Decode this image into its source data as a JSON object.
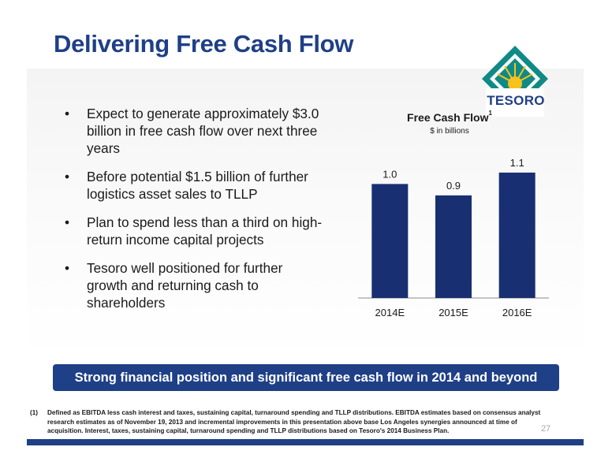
{
  "slide": {
    "title": "Delivering Free Cash Flow",
    "logo_text": "TESORO",
    "page_number": "27"
  },
  "bullets": [
    "Expect to generate approximately $3.0 billion in free cash flow over next three years",
    "Before potential $1.5 billion of further logistics asset sales to TLLP",
    "Plan to spend less than a third on high-return income capital projects",
    "Tesoro well positioned for further growth and returning cash to shareholders"
  ],
  "chart_data": {
    "type": "bar",
    "title": "Free Cash Flow",
    "title_superscript": "1",
    "subtitle": "$ in billions",
    "categories": [
      "2014E",
      "2015E",
      "2016E"
    ],
    "values": [
      1.0,
      0.9,
      1.1
    ],
    "value_labels": [
      "1.0",
      "0.9",
      "1.1"
    ],
    "ylim": [
      0,
      1.3
    ],
    "grid": false,
    "bar_color": "#182f72"
  },
  "banner_text": "Strong financial position and significant free cash flow in 2014 and beyond",
  "footnote": {
    "marker": "(1)",
    "text": "Defined as EBITDA less cash interest and taxes, sustaining capital, turnaround spending and TLLP distributions. EBITDA estimates based on consensus analyst research estimates as of November 19, 2013 and incremental improvements in this presentation above base Los Angeles synergies announced at time of acquisition. Interest, taxes, sustaining capital, turnaround spending and TLLP distributions based on Tesoro's 2014 Business Plan."
  },
  "colors": {
    "brand_blue": "#1f3f87",
    "logo_teal": "#0f8a86",
    "logo_gold": "#f6c21b"
  }
}
